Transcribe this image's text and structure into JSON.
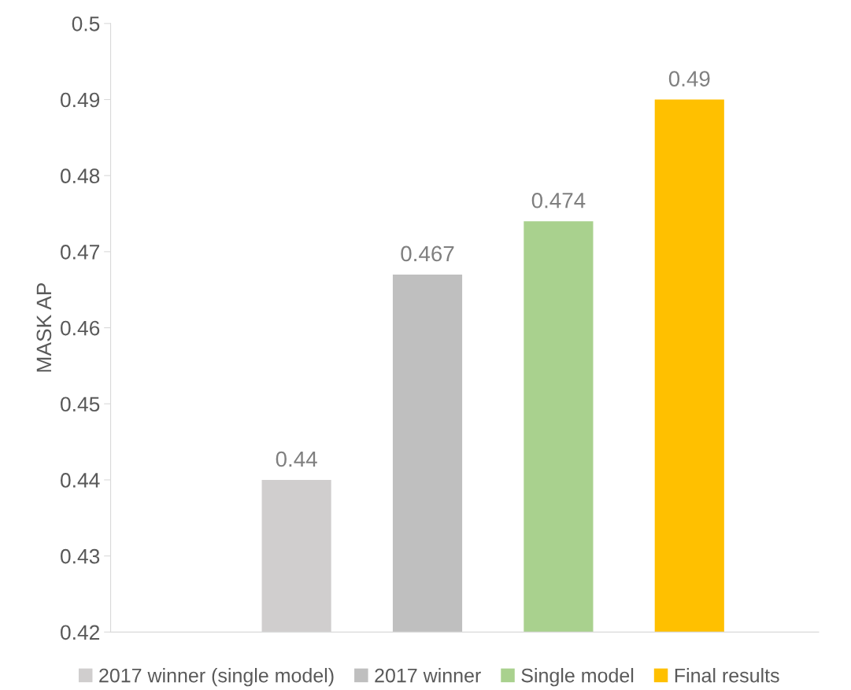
{
  "chart_data": {
    "type": "bar",
    "ylabel": "MASK AP",
    "categories": [
      null
    ],
    "series": [
      {
        "name": "2017 winner (single model)",
        "color": "#d0cece",
        "values": [
          0.44
        ]
      },
      {
        "name": "2017 winner",
        "color": "#bfbfbf",
        "values": [
          0.467
        ]
      },
      {
        "name": "Single model",
        "color": "#a9d18e",
        "values": [
          0.474
        ]
      },
      {
        "name": "Final results",
        "color": "#ffc000",
        "values": [
          0.49
        ]
      }
    ],
    "ylim": [
      0.42,
      0.5
    ],
    "yticks": [
      0.42,
      0.43,
      0.44,
      0.45,
      0.46,
      0.47,
      0.48,
      0.49,
      0.5
    ],
    "data_labels": true,
    "grid": false,
    "legend": "bottom"
  }
}
